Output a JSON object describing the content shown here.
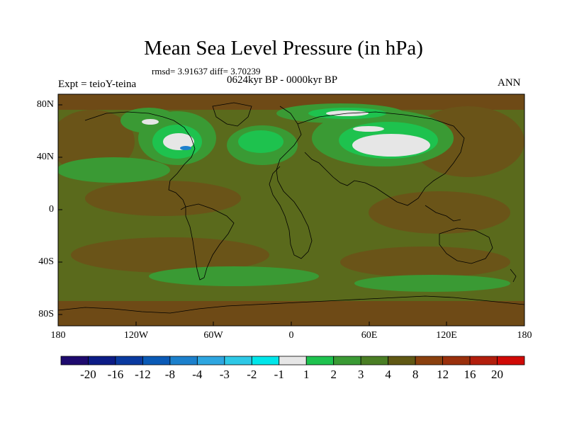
{
  "title": "Mean Sea Level Pressure (in hPa)",
  "stats": "rmsd= 3.91637  diff= 3.70239",
  "period": "0624kyr BP - 0000kyr BP",
  "experiment": "Expt = teioY-teina",
  "season": "ANN",
  "latitude_labels": [
    "80N",
    "40N",
    "0",
    "40S",
    "80S"
  ],
  "longitude_labels": [
    "180",
    "120W",
    "60W",
    "0",
    "60E",
    "120E",
    "180"
  ],
  "colorbar": {
    "labels": [
      "-20",
      "-16",
      "-12",
      "-8",
      "-4",
      "-3",
      "-2",
      "-1",
      "1",
      "2",
      "3",
      "4",
      "8",
      "12",
      "16",
      "20"
    ],
    "colors": [
      "#1e0a6e",
      "#0c1c86",
      "#0a3aa0",
      "#0a5ab6",
      "#1c80cc",
      "#2ea6e0",
      "#2ec8e6",
      "#00e6ea",
      "#e6e6e6",
      "#1ec24e",
      "#3a9a34",
      "#4a7e24",
      "#605814",
      "#8a400e",
      "#9a300c",
      "#b21e0c",
      "#d00a06"
    ]
  },
  "map_colors": {
    "background": "#5a6a1c",
    "level_3": "#3a9a34",
    "level_2": "#1ec24e",
    "level_1": "#e6e6e6",
    "positive": "#6e4a16",
    "ocean_blue": "#1c80cc"
  }
}
